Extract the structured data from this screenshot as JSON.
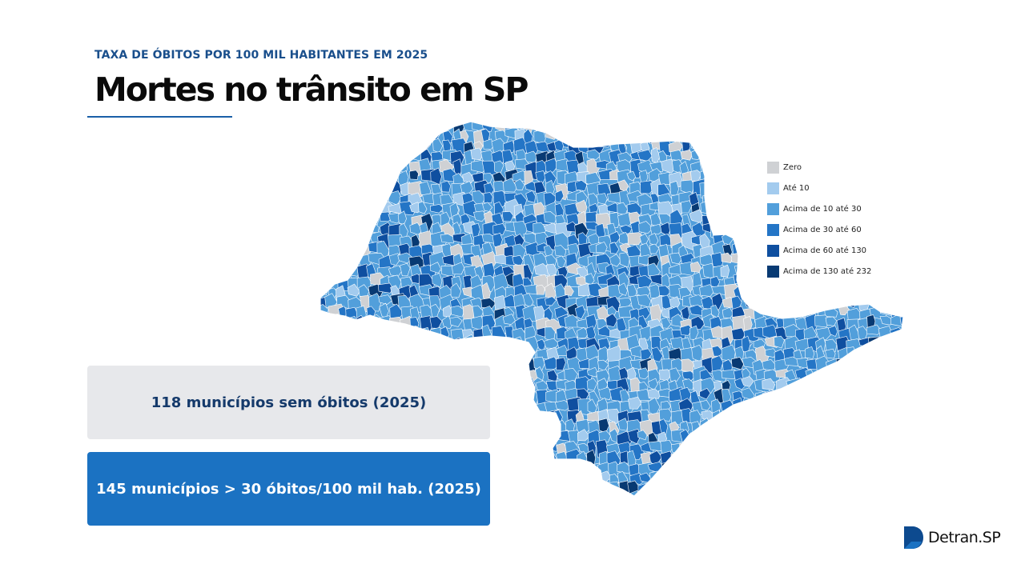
{
  "header": {
    "kicker": "TAXA DE ÓBITOS POR 100 MIL HABITANTES EM 2025",
    "title": "Mortes no trânsito em SP"
  },
  "legend": [
    {
      "label": "Zero",
      "color": "#cfd1d4"
    },
    {
      "label": "Até 10",
      "color": "#a3cbee"
    },
    {
      "label": "Acima de 10 até 30",
      "color": "#529fdb"
    },
    {
      "label": "Acima de 30 até 60",
      "color": "#2475c6"
    },
    {
      "label": "Acima de 60 até 130",
      "color": "#0f4fa0"
    },
    {
      "label": "Acima de 130 até 232",
      "color": "#083a73"
    }
  ],
  "stats": {
    "no_deaths": "118 municípios sem óbitos (2025)",
    "high_rate": "145 municípios > 30 óbitos/100 mil hab. (2025)"
  },
  "logo": {
    "text": "Detran.SP",
    "color": "#0d4a8f"
  }
}
